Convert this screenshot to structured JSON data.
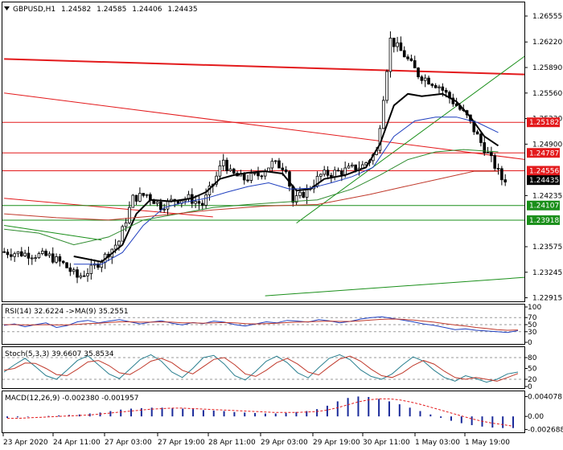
{
  "chart_data": [
    {
      "type": "candlestick",
      "header": {
        "symbol": "GBPUSD,H1",
        "ohlc": [
          "1.24582",
          "1.24585",
          "1.24406",
          "1.24435"
        ]
      },
      "ylim": [
        1.229,
        1.267
      ],
      "y_ticks": [
        "1.26555",
        "1.26220",
        "1.25890",
        "1.25560",
        "1.25230",
        "1.24900",
        "1.24235",
        "1.23575",
        "1.23245",
        "1.22915"
      ],
      "x_ticks": [
        "23 Apr 2020",
        "24 Apr 11:00",
        "27 Apr 03:00",
        "27 Apr 19:00",
        "28 Apr 11:00",
        "29 Apr 03:00",
        "29 Apr 19:00",
        "30 Apr 11:00",
        "1 May 03:00",
        "1 May 19:00"
      ],
      "level_tags": [
        {
          "text": "1.25182",
          "value": 1.25182,
          "color": "#e31a1c",
          "line": true
        },
        {
          "text": "1.24787",
          "value": 1.24787,
          "color": "#e31a1c",
          "line": true
        },
        {
          "text": "1.24556",
          "value": 1.24556,
          "color": "#e31a1c",
          "line": true
        },
        {
          "text": "1.24435",
          "value": 1.24435,
          "color": "#000000",
          "line": false
        },
        {
          "text": "1.24107",
          "value": 1.24107,
          "color": "#1a8f1a",
          "line": true
        },
        {
          "text": "1.23918",
          "value": 1.23918,
          "color": "#1a8f1a",
          "line": true
        }
      ],
      "trendlines": [
        {
          "from": [
            0,
            1.26
          ],
          "to": [
            150,
            1.258
          ],
          "color": "#e31a1c",
          "width": 2
        },
        {
          "from": [
            0,
            1.2556
          ],
          "to": [
            150,
            1.247
          ],
          "color": "#e31a1c",
          "width": 1
        },
        {
          "from": [
            0,
            1.242
          ],
          "to": [
            60,
            1.2396
          ],
          "color": "#e31a1c",
          "width": 1
        },
        {
          "from": [
            0,
            1.2385
          ],
          "to": [
            28,
            1.2366
          ],
          "color": "#1a8f1a",
          "width": 1
        },
        {
          "from": [
            75,
            1.2294
          ],
          "to": [
            150,
            1.2318
          ],
          "color": "#1a8f1a",
          "width": 1
        },
        {
          "from": [
            84,
            1.2388
          ],
          "to": [
            150,
            1.2605
          ],
          "color": "#1a8f1a",
          "width": 1
        }
      ],
      "moving_averages": [
        {
          "color": "#000000",
          "width": 2,
          "points": [
            [
              20,
              1.2345
            ],
            [
              28,
              1.2338
            ],
            [
              34,
              1.236
            ],
            [
              38,
              1.24
            ],
            [
              42,
              1.2418
            ],
            [
              48,
              1.2416
            ],
            [
              54,
              1.242
            ],
            [
              58,
              1.2428
            ],
            [
              62,
              1.2445
            ],
            [
              66,
              1.245
            ],
            [
              70,
              1.2453
            ],
            [
              75,
              1.2455
            ],
            [
              80,
              1.2452
            ],
            [
              84,
              1.243
            ],
            [
              88,
              1.2432
            ],
            [
              92,
              1.2445
            ],
            [
              98,
              1.245
            ],
            [
              104,
              1.246
            ],
            [
              108,
              1.249
            ],
            [
              112,
              1.254
            ],
            [
              116,
              1.2555
            ],
            [
              120,
              1.2552
            ],
            [
              126,
              1.2555
            ],
            [
              130,
              1.2545
            ],
            [
              134,
              1.2525
            ],
            [
              138,
              1.25
            ],
            [
              142,
              1.2488
            ]
          ]
        },
        {
          "color": "#1f3fbf",
          "width": 1,
          "points": [
            [
              20,
              1.2335
            ],
            [
              28,
              1.2335
            ],
            [
              34,
              1.235
            ],
            [
              40,
              1.2385
            ],
            [
              46,
              1.2408
            ],
            [
              52,
              1.2415
            ],
            [
              58,
              1.242
            ],
            [
              64,
              1.2428
            ],
            [
              70,
              1.2435
            ],
            [
              76,
              1.244
            ],
            [
              82,
              1.2432
            ],
            [
              88,
              1.2433
            ],
            [
              94,
              1.244
            ],
            [
              100,
              1.2448
            ],
            [
              106,
              1.246
            ],
            [
              112,
              1.25
            ],
            [
              118,
              1.252
            ],
            [
              124,
              1.2525
            ],
            [
              130,
              1.2525
            ],
            [
              136,
              1.2518
            ],
            [
              142,
              1.2505
            ]
          ]
        },
        {
          "color": "#2e8b2e",
          "width": 1,
          "points": [
            [
              0,
              1.238
            ],
            [
              10,
              1.2375
            ],
            [
              20,
              1.236
            ],
            [
              30,
              1.237
            ],
            [
              40,
              1.2392
            ],
            [
              50,
              1.24
            ],
            [
              60,
              1.2408
            ],
            [
              70,
              1.2412
            ],
            [
              80,
              1.2415
            ],
            [
              90,
              1.2418
            ],
            [
              100,
              1.2432
            ],
            [
              108,
              1.245
            ],
            [
              116,
              1.247
            ],
            [
              124,
              1.248
            ],
            [
              132,
              1.2483
            ],
            [
              142,
              1.248
            ]
          ]
        },
        {
          "color": "#c0392b",
          "width": 1,
          "points": [
            [
              0,
              1.24
            ],
            [
              15,
              1.2395
            ],
            [
              30,
              1.2392
            ],
            [
              45,
              1.2398
            ],
            [
              60,
              1.2405
            ],
            [
              75,
              1.241
            ],
            [
              90,
              1.2412
            ],
            [
              105,
              1.2425
            ],
            [
              115,
              1.2435
            ],
            [
              125,
              1.2445
            ],
            [
              135,
              1.2455
            ],
            [
              142,
              1.2455
            ]
          ]
        }
      ]
    },
    {
      "type": "line",
      "header": "RSI(14) 32.6224  ->MA(9) 35.2551",
      "ylim": [
        0,
        100
      ],
      "y_ticks": [
        "100",
        "70",
        "50",
        "30",
        "0"
      ],
      "series": [
        {
          "color": "#1f3fbf",
          "values": [
            48,
            52,
            44,
            50,
            55,
            42,
            47,
            58,
            62,
            55,
            60,
            64,
            58,
            52,
            57,
            61,
            54,
            49,
            56,
            53,
            60,
            57,
            50,
            46,
            52,
            58,
            55,
            62,
            60,
            57,
            64,
            61,
            55,
            59,
            66,
            70,
            72,
            68,
            63,
            58,
            52,
            48,
            42,
            36,
            38,
            34,
            32,
            30,
            28,
            33
          ]
        },
        {
          "color": "#c0392b",
          "values": [
            50,
            50,
            49,
            49,
            50,
            49,
            49,
            51,
            53,
            54,
            56,
            58,
            58,
            57,
            57,
            58,
            57,
            55,
            55,
            54,
            55,
            56,
            55,
            53,
            52,
            53,
            54,
            56,
            57,
            58,
            59,
            60,
            59,
            59,
            61,
            63,
            65,
            66,
            65,
            63,
            60,
            57,
            53,
            49,
            46,
            42,
            39,
            36,
            34,
            35
          ]
        }
      ]
    },
    {
      "type": "line",
      "header": "Stoch(5,3,3) 39.6607 35.8534",
      "ylim": [
        0,
        100
      ],
      "y_ticks": [
        "80",
        "50",
        "20",
        "0"
      ],
      "series": [
        {
          "color": "#2a7f8f",
          "values": [
            40,
            60,
            78,
            55,
            30,
            20,
            45,
            72,
            85,
            60,
            35,
            22,
            48,
            75,
            88,
            70,
            40,
            25,
            50,
            80,
            86,
            62,
            30,
            18,
            42,
            70,
            84,
            66,
            38,
            24,
            52,
            78,
            88,
            74,
            46,
            28,
            20,
            35,
            60,
            82,
            70,
            45,
            25,
            15,
            30,
            22,
            12,
            20,
            35,
            40
          ]
        },
        {
          "color": "#c0392b",
          "values": [
            45,
            50,
            65,
            64,
            50,
            33,
            30,
            48,
            68,
            72,
            58,
            38,
            33,
            50,
            70,
            78,
            66,
            45,
            35,
            55,
            75,
            80,
            60,
            35,
            28,
            45,
            66,
            78,
            62,
            40,
            32,
            55,
            76,
            84,
            70,
            48,
            30,
            25,
            38,
            58,
            72,
            62,
            42,
            25,
            20,
            25,
            20,
            15,
            25,
            36
          ]
        }
      ]
    },
    {
      "type": "bar",
      "header": "MACD(12,26,9) -0.002380 -0.001957",
      "ylim": [
        -0.00295,
        0.0045
      ],
      "y_ticks": [
        "0.004078",
        "0.00",
        "-0.002688"
      ],
      "histogram": [
        -0.0003,
        -0.0002,
        -0.0001,
        0.0,
        0.0001,
        0.0002,
        0.0003,
        0.0004,
        0.0006,
        0.0008,
        0.0011,
        0.0014,
        0.0016,
        0.0017,
        0.0018,
        0.0018,
        0.0017,
        0.0016,
        0.0015,
        0.0013,
        0.0012,
        0.0011,
        0.0009,
        0.0008,
        0.0007,
        0.0006,
        0.0006,
        0.0007,
        0.0009,
        0.0011,
        0.0015,
        0.0022,
        0.0031,
        0.0038,
        0.0041,
        0.004,
        0.0036,
        0.0031,
        0.0025,
        0.0018,
        0.0011,
        0.0004,
        -0.0003,
        -0.0009,
        -0.0014,
        -0.0018,
        -0.0021,
        -0.0023,
        -0.0024,
        -0.0024
      ],
      "signal": [
        -0.0004,
        -0.0004,
        -0.0003,
        -0.0002,
        -0.0001,
        0.0,
        0.0001,
        0.0002,
        0.0003,
        0.0005,
        0.0007,
        0.0009,
        0.0011,
        0.0013,
        0.0015,
        0.0016,
        0.0017,
        0.0017,
        0.0016,
        0.0015,
        0.0014,
        0.0013,
        0.0012,
        0.0011,
        0.001,
        0.0009,
        0.0008,
        0.0008,
        0.0008,
        0.0009,
        0.001,
        0.0013,
        0.0018,
        0.0024,
        0.003,
        0.0034,
        0.0036,
        0.0036,
        0.0034,
        0.003,
        0.0025,
        0.0019,
        0.0013,
        0.0007,
        0.0001,
        -0.0005,
        -0.001,
        -0.0014,
        -0.0017,
        -0.002
      ]
    }
  ]
}
